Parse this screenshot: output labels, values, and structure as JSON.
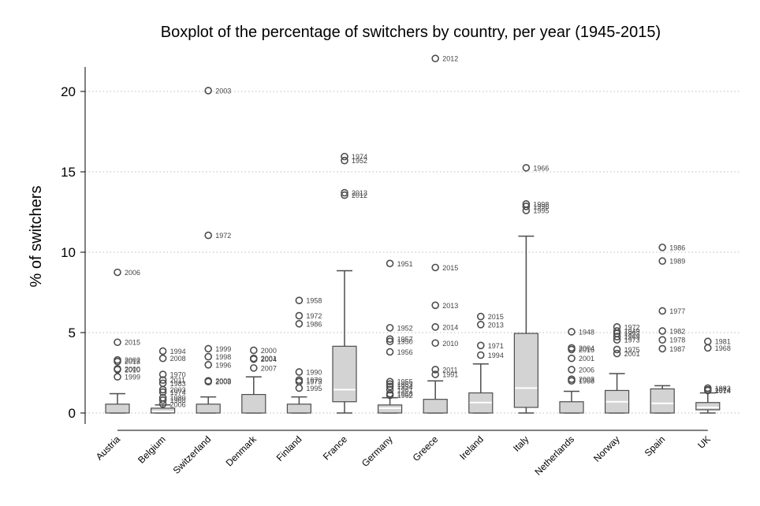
{
  "chart_data": {
    "type": "boxplot",
    "title": "Boxplot of the percentage of switchers by country, per year (1945-2015)",
    "ylabel": "% of switchers",
    "xlabel": "",
    "ylim": [
      -0.5,
      22.5
    ],
    "yticks": [
      0,
      5,
      10,
      15,
      20
    ],
    "grid": "y-dotted",
    "colors": {
      "box_fill": "#d3d3d3",
      "box_stroke": "#4d4d4d",
      "median": "#ffffff",
      "grid": "#bbbbbb"
    },
    "categories": [
      "Austria",
      "Belgium",
      "Switzerland",
      "Denmark",
      "Finland",
      "France",
      "Germany",
      "Greece",
      "Ireland",
      "Italy",
      "Netherlands",
      "Norway",
      "Spain",
      "UK"
    ],
    "boxes": [
      {
        "category": "Austria",
        "whisker_low": 0,
        "q1": 0,
        "median": 0,
        "q3": 0.55,
        "whisker_high": 1.2,
        "outliers": [
          {
            "y": 8.75,
            "label": "2006"
          },
          {
            "y": 4.4,
            "label": "2015"
          },
          {
            "y": 3.3,
            "label": "2002"
          },
          {
            "y": 3.2,
            "label": "2013"
          },
          {
            "y": 2.75,
            "label": "2000"
          },
          {
            "y": 2.7,
            "label": "2010"
          },
          {
            "y": 2.25,
            "label": "1999"
          }
        ]
      },
      {
        "category": "Belgium",
        "whisker_low": 0,
        "q1": 0,
        "median": 0.1,
        "q3": 0.3,
        "whisker_high": 0.5,
        "outliers": [
          {
            "y": 3.85,
            "label": "1994"
          },
          {
            "y": 3.4,
            "label": "2008"
          },
          {
            "y": 2.4,
            "label": "1970"
          },
          {
            "y": 2.05,
            "label": "2011"
          },
          {
            "y": 1.85,
            "label": "1983"
          },
          {
            "y": 1.45,
            "label": "2003"
          },
          {
            "y": 1.3,
            "label": "1974"
          },
          {
            "y": 0.95,
            "label": "1980"
          },
          {
            "y": 0.8,
            "label": "1968"
          },
          {
            "y": 0.55,
            "label": "2006"
          }
        ]
      },
      {
        "category": "Switzerland",
        "whisker_low": 0,
        "q1": 0,
        "median": 0,
        "q3": 0.55,
        "whisker_high": 1.0,
        "outliers": [
          {
            "y": 20.05,
            "label": "2003"
          },
          {
            "y": 11.05,
            "label": "1972"
          },
          {
            "y": 4.0,
            "label": "1999"
          },
          {
            "y": 3.5,
            "label": "1998"
          },
          {
            "y": 3.0,
            "label": "1996"
          },
          {
            "y": 2.0,
            "label": "2009"
          },
          {
            "y": 1.95,
            "label": "2008"
          }
        ]
      },
      {
        "category": "Denmark",
        "whisker_low": 0,
        "q1": 0,
        "median": 0,
        "q3": 1.15,
        "whisker_high": 2.25,
        "outliers": [
          {
            "y": 3.9,
            "label": "2000"
          },
          {
            "y": 3.4,
            "label": "2001"
          },
          {
            "y": 3.35,
            "label": "2004"
          },
          {
            "y": 2.8,
            "label": "2007"
          }
        ]
      },
      {
        "category": "Finland",
        "whisker_low": 0,
        "q1": 0,
        "median": 0,
        "q3": 0.55,
        "whisker_high": 1.0,
        "outliers": [
          {
            "y": 7.0,
            "label": "1958"
          },
          {
            "y": 6.05,
            "label": "1972"
          },
          {
            "y": 5.55,
            "label": "1986"
          },
          {
            "y": 2.55,
            "label": "1990"
          },
          {
            "y": 2.05,
            "label": "1970"
          },
          {
            "y": 1.95,
            "label": "1973"
          },
          {
            "y": 1.55,
            "label": "1995"
          }
        ]
      },
      {
        "category": "France",
        "whisker_low": 0,
        "q1": 0.7,
        "median": 1.45,
        "q3": 4.15,
        "whisker_high": 8.85,
        "outliers": [
          {
            "y": 15.95,
            "label": "1974"
          },
          {
            "y": 15.7,
            "label": "1952"
          },
          {
            "y": 13.7,
            "label": "2013"
          },
          {
            "y": 13.55,
            "label": "2012"
          }
        ]
      },
      {
        "category": "Germany",
        "whisker_low": 0,
        "q1": 0,
        "median": 0.3,
        "q3": 0.5,
        "whisker_high": 0.95,
        "outliers": [
          {
            "y": 9.3,
            "label": "1951"
          },
          {
            "y": 5.3,
            "label": "1952"
          },
          {
            "y": 4.6,
            "label": "1957"
          },
          {
            "y": 4.45,
            "label": "1950"
          },
          {
            "y": 3.8,
            "label": "1956"
          },
          {
            "y": 1.95,
            "label": "1955"
          },
          {
            "y": 1.8,
            "label": "1953"
          },
          {
            "y": 1.65,
            "label": "1954"
          },
          {
            "y": 1.45,
            "label": "1961"
          },
          {
            "y": 1.2,
            "label": "1958"
          },
          {
            "y": 1.1,
            "label": "1962"
          }
        ]
      },
      {
        "category": "Greece",
        "whisker_low": 0,
        "q1": 0,
        "median": 0,
        "q3": 0.85,
        "whisker_high": 2.0,
        "outliers": [
          {
            "y": 22.05,
            "label": "2012"
          },
          {
            "y": 9.05,
            "label": "2015"
          },
          {
            "y": 6.7,
            "label": "2013"
          },
          {
            "y": 5.35,
            "label": "2014"
          },
          {
            "y": 4.35,
            "label": "2010"
          },
          {
            "y": 2.7,
            "label": "2011"
          },
          {
            "y": 2.4,
            "label": "1991"
          }
        ]
      },
      {
        "category": "Ireland",
        "whisker_low": 0,
        "q1": 0,
        "median": 0.65,
        "q3": 1.25,
        "whisker_high": 3.05,
        "outliers": [
          {
            "y": 6.0,
            "label": "2015"
          },
          {
            "y": 5.5,
            "label": "2013"
          },
          {
            "y": 4.2,
            "label": "1971"
          },
          {
            "y": 3.6,
            "label": "1994"
          }
        ]
      },
      {
        "category": "Italy",
        "whisker_low": 0,
        "q1": 0.35,
        "median": 1.55,
        "q3": 4.95,
        "whisker_high": 11.0,
        "outliers": [
          {
            "y": 15.25,
            "label": "1966"
          },
          {
            "y": 13.0,
            "label": "1998"
          },
          {
            "y": 12.85,
            "label": "1996"
          },
          {
            "y": 12.6,
            "label": "1995"
          }
        ]
      },
      {
        "category": "Netherlands",
        "whisker_low": 0,
        "q1": 0,
        "median": 0,
        "q3": 0.7,
        "whisker_high": 1.35,
        "outliers": [
          {
            "y": 5.05,
            "label": "1948"
          },
          {
            "y": 4.05,
            "label": "2004"
          },
          {
            "y": 3.95,
            "label": "2016"
          },
          {
            "y": 3.4,
            "label": "2001"
          },
          {
            "y": 2.7,
            "label": "2006"
          },
          {
            "y": 2.1,
            "label": "2003"
          },
          {
            "y": 2.0,
            "label": "1968"
          }
        ]
      },
      {
        "category": "Norway",
        "whisker_low": 0,
        "q1": 0,
        "median": 0.7,
        "q3": 1.4,
        "whisker_high": 2.45,
        "outliers": [
          {
            "y": 5.35,
            "label": "1972"
          },
          {
            "y": 5.1,
            "label": "1949"
          },
          {
            "y": 4.95,
            "label": "1953"
          },
          {
            "y": 4.75,
            "label": "1969"
          },
          {
            "y": 4.55,
            "label": "1973"
          },
          {
            "y": 3.95,
            "label": "1975"
          },
          {
            "y": 3.7,
            "label": "2001"
          }
        ]
      },
      {
        "category": "Spain",
        "whisker_low": 0,
        "q1": 0,
        "median": 0.6,
        "q3": 1.5,
        "whisker_high": 1.7,
        "outliers": [
          {
            "y": 10.3,
            "label": "1986"
          },
          {
            "y": 9.45,
            "label": "1989"
          },
          {
            "y": 6.35,
            "label": "1977"
          },
          {
            "y": 5.1,
            "label": "1982"
          },
          {
            "y": 4.55,
            "label": "1978"
          },
          {
            "y": 4.0,
            "label": "1987"
          }
        ]
      },
      {
        "category": "UK",
        "whisker_low": 0,
        "q1": 0.2,
        "median": 0.35,
        "q3": 0.65,
        "whisker_high": 1.25,
        "outliers": [
          {
            "y": 4.45,
            "label": "1981"
          },
          {
            "y": 4.05,
            "label": "1968"
          },
          {
            "y": 1.55,
            "label": "1983"
          },
          {
            "y": 1.45,
            "label": "1974"
          },
          {
            "y": 1.4,
            "label": "2014"
          }
        ]
      }
    ]
  }
}
